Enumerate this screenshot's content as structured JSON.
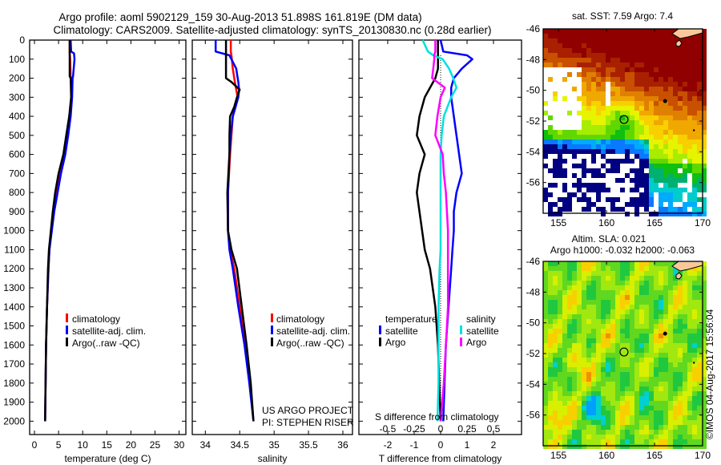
{
  "title_line1": "Argo profile: aoml 5902129_159 30-Aug-2013 51.898S 161.819E (DM data)",
  "title_line2": "Climatology: CARS2009. Satellite-adjusted climatology: synTS_20130830.nc (0.28d earlier)",
  "credit": "US ARGO PROJECT",
  "pi": "PI: STEPHEN RISER",
  "timestamp": "©IMOS 04-Aug-2017 15:56:04",
  "colors": {
    "climatology": "#ff0000",
    "satellite": "#0000ff",
    "argo": "#000000",
    "sal_satellite": "#00e0e0",
    "sal_argo": "#ff00ff",
    "land": "#f8c89a"
  },
  "chart_data": [
    {
      "type": "line",
      "title": "",
      "xlabel": "temperature (deg C)",
      "ylabel": "",
      "xlim": [
        -1,
        31.4
      ],
      "ylim": [
        2070,
        0
      ],
      "xticks": [
        "0",
        "5",
        "10",
        "15",
        "20",
        "25",
        "30"
      ],
      "xtick_values": [
        0,
        5,
        10,
        15,
        20,
        25,
        30
      ],
      "yticks": [
        "0",
        "100",
        "200",
        "300",
        "400",
        "500",
        "600",
        "700",
        "800",
        "900",
        "1000",
        "1100",
        "1200",
        "1300",
        "1400",
        "1500",
        "1600",
        "1700",
        "1800",
        "1900",
        "2000"
      ],
      "legend": [
        "climatology",
        "satellite-adj. clim.",
        "Argo(..raw -QC)"
      ],
      "depth": [
        0,
        60,
        70,
        100,
        190,
        200,
        300,
        400,
        500,
        600,
        700,
        800,
        900,
        1000,
        1100,
        1200,
        1400,
        1600,
        1800,
        2000
      ],
      "series": [
        {
          "name": "climatology",
          "color": "#ff0000",
          "values": [
            7.3,
            7.3,
            7.3,
            7.4,
            7.5,
            7.6,
            7.7,
            7.4,
            6.9,
            6.2,
            5.3,
            4.6,
            4.0,
            3.5,
            3.1,
            2.9,
            2.6,
            2.4,
            2.3,
            2.2
          ]
        },
        {
          "name": "satellite-adj. clim.",
          "color": "#0000ff",
          "values": [
            7.5,
            7.6,
            8.2,
            8.3,
            8.0,
            7.9,
            7.8,
            7.5,
            7.0,
            6.4,
            5.5,
            4.8,
            4.1,
            3.6,
            3.1,
            2.9,
            2.6,
            2.4,
            2.3,
            2.2
          ]
        },
        {
          "name": "Argo(..raw -QC)",
          "color": "#000000",
          "values": [
            7.3,
            7.3,
            7.3,
            7.3,
            7.3,
            7.5,
            7.6,
            7.2,
            6.6,
            6.0,
            5.0,
            4.3,
            3.8,
            3.4,
            3.0,
            2.8,
            2.6,
            2.4,
            2.3,
            2.2
          ]
        }
      ]
    },
    {
      "type": "line",
      "xlabel": "salinity",
      "xlim": [
        33.81,
        36.14
      ],
      "ylim": [
        2070,
        0
      ],
      "xticks": [
        "34",
        "34.5",
        "35",
        "35.5",
        "36"
      ],
      "xtick_values": [
        34,
        34.5,
        35,
        35.5,
        36
      ],
      "legend": [
        "climatology",
        "satellite-adj. clim.",
        "Argo(..raw -QC)"
      ],
      "depth": [
        0,
        60,
        80,
        150,
        200,
        220,
        260,
        300,
        350,
        400,
        500,
        600,
        800,
        1000,
        1100,
        1200,
        1400,
        1600,
        1800,
        2000
      ],
      "series": [
        {
          "name": "climatology",
          "color": "#ff0000",
          "values": [
            34.37,
            34.37,
            34.38,
            34.4,
            34.42,
            34.43,
            34.45,
            34.47,
            34.44,
            34.4,
            34.38,
            34.36,
            34.33,
            34.33,
            34.36,
            34.42,
            34.5,
            34.58,
            34.65,
            34.7
          ]
        },
        {
          "name": "satellite-adj. clim.",
          "color": "#0000ff",
          "values": [
            34.15,
            34.15,
            34.35,
            34.45,
            34.47,
            34.48,
            34.49,
            34.48,
            34.44,
            34.4,
            34.37,
            34.35,
            34.33,
            34.33,
            34.35,
            34.4,
            34.48,
            34.57,
            34.64,
            34.7
          ]
        },
        {
          "name": "Argo(..raw -QC)",
          "color": "#000000",
          "values": [
            34.3,
            34.3,
            34.3,
            34.3,
            34.3,
            34.38,
            34.5,
            34.46,
            34.42,
            34.36,
            34.35,
            34.35,
            34.32,
            34.33,
            34.38,
            34.46,
            34.53,
            34.6,
            34.66,
            34.7
          ]
        }
      ]
    },
    {
      "type": "line",
      "xlabel": "T difference from climatology",
      "xlabel2": "S difference from climatology",
      "xlim": [
        -3.09,
        3.06
      ],
      "ylim": [
        2070,
        0
      ],
      "xticks": [
        "-2",
        "-1",
        "0",
        "1",
        "2"
      ],
      "xtick_values": [
        -2,
        -1,
        0,
        1,
        2
      ],
      "xticks2": [
        "-0.5",
        "-0.25",
        "0",
        "0.25",
        "0.5"
      ],
      "xtick2_values": [
        -0.5,
        -0.25,
        0,
        0.25,
        0.5
      ],
      "legend_temperature": {
        "title": "temperature",
        "items": [
          "satellite",
          "Argo"
        ]
      },
      "legend_salinity": {
        "title": "salinity",
        "items": [
          "satellite",
          "Argo"
        ]
      },
      "depth": [
        0,
        60,
        80,
        100,
        150,
        200,
        250,
        300,
        400,
        500,
        600,
        700,
        800,
        900,
        1000,
        1100,
        1200,
        1400,
        1600,
        1800,
        2000
      ],
      "series": [
        {
          "name": "T satellite",
          "color": "#0000ff",
          "units": "T",
          "values": [
            0,
            0.1,
            1.0,
            1.2,
            0.8,
            0.5,
            0.4,
            0.4,
            0.5,
            0.6,
            0.7,
            0.8,
            0.6,
            0.5,
            0.5,
            0.45,
            0.4,
            0.3,
            0.2,
            0.15,
            0.1
          ]
        },
        {
          "name": "T Argo",
          "color": "#000000",
          "units": "T",
          "values": [
            -0.1,
            -0.1,
            -0.1,
            -0.1,
            -0.1,
            -0.2,
            -0.4,
            -0.6,
            -0.8,
            -0.9,
            -0.6,
            -0.8,
            -0.9,
            -0.8,
            -0.7,
            -0.6,
            -0.4,
            -0.2,
            -0.1,
            -0.05,
            0
          ]
        },
        {
          "name": "S satellite",
          "color": "#00e0e0",
          "units": "S",
          "values": [
            -0.17,
            -0.12,
            -0.07,
            0.02,
            0.08,
            0.12,
            0.15,
            0.1,
            0.03,
            0.01,
            0,
            0,
            0,
            0,
            0,
            0,
            -0.01,
            -0.02,
            -0.02,
            -0.02,
            -0.03
          ]
        },
        {
          "name": "S Argo",
          "color": "#ff00ff",
          "units": "S",
          "values": [
            -0.05,
            -0.05,
            -0.06,
            -0.06,
            -0.07,
            -0.08,
            0.04,
            0,
            -0.03,
            -0.05,
            0.02,
            0.03,
            0.05,
            0.06,
            0.07,
            0.07,
            0.07,
            0.07,
            0.05,
            0.03,
            0
          ]
        }
      ]
    },
    {
      "type": "heatmap",
      "title": "sat. SST: 7.59 Argo: 7.4",
      "xticks": [
        "155",
        "160",
        "165",
        "170"
      ],
      "xtick_values": [
        155,
        160,
        165,
        170
      ],
      "yticks": [
        "-46",
        "-48",
        "-50",
        "-52",
        "-54",
        "-56"
      ],
      "ytick_values": [
        -46,
        -48,
        -50,
        -52,
        -54,
        -56
      ],
      "xlim": [
        153.4,
        170
      ],
      "ylim": [
        -58,
        -46
      ],
      "marker": {
        "lon": 161.819,
        "lat": -51.898
      },
      "colormap": [
        "#000080",
        "#0a78ff",
        "#00aaff",
        "#00cccc",
        "#00b070",
        "#10c010",
        "#60d800",
        "#a8ec00",
        "#e6f400",
        "#f8d000",
        "#f0a800",
        "#e08000",
        "#c85000",
        "#a82000",
        "#900000"
      ]
    },
    {
      "type": "heatmap",
      "title": "Altim. SLA: 0.021",
      "subtitle": "Argo h1000: -0.032 h2000: -0.063",
      "xticks": [
        "155",
        "160",
        "165",
        "170"
      ],
      "xtick_values": [
        155,
        160,
        165,
        170
      ],
      "yticks": [
        "-46",
        "-48",
        "-50",
        "-52",
        "-54",
        "-56"
      ],
      "ytick_values": [
        -46,
        -48,
        -50,
        -52,
        -54,
        -56
      ],
      "xlim": [
        153.4,
        170
      ],
      "ylim": [
        -58,
        -46
      ],
      "marker": {
        "lon": 161.819,
        "lat": -51.898
      },
      "colormap": [
        "#1060ff",
        "#00a0ff",
        "#00d0d0",
        "#20c840",
        "#60d820",
        "#a0e810",
        "#d8f000",
        "#f8d000",
        "#f09000",
        "#d05020"
      ]
    }
  ]
}
